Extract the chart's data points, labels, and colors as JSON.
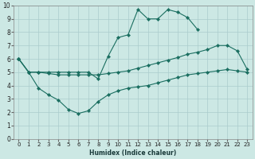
{
  "xlabel": "Humidex (Indice chaleur)",
  "bg_color": "#cce8e4",
  "grid_color": "#aacccc",
  "line_color": "#1a6e60",
  "line1_x": [
    0,
    1,
    2,
    3,
    4,
    5,
    6,
    7,
    8,
    9,
    10,
    11,
    12,
    13,
    14,
    15,
    16,
    17,
    18,
    19,
    20,
    21,
    22,
    23
  ],
  "line1_y": [
    6.0,
    5.0,
    5.0,
    4.9,
    4.8,
    4.8,
    4.8,
    4.8,
    4.8,
    4.9,
    5.0,
    5.1,
    5.3,
    5.5,
    5.7,
    5.9,
    6.1,
    6.35,
    6.5,
    6.7,
    7.0,
    7.0,
    6.6,
    5.2
  ],
  "line2_x": [
    0,
    1,
    2,
    3,
    4,
    5,
    6,
    7,
    8,
    9,
    10,
    11,
    12,
    13,
    14,
    15,
    16,
    17,
    18
  ],
  "line2_y": [
    6.0,
    5.0,
    5.0,
    5.0,
    5.0,
    5.0,
    5.0,
    5.0,
    4.5,
    6.2,
    7.6,
    7.8,
    9.7,
    9.0,
    9.0,
    9.7,
    9.5,
    9.1,
    8.2
  ],
  "line3_x": [
    0,
    1,
    2,
    3,
    4,
    5,
    6,
    7,
    8,
    9,
    10,
    11,
    12,
    13,
    14,
    15,
    16,
    17,
    18,
    19,
    20,
    21,
    22,
    23
  ],
  "line3_y": [
    6.0,
    5.0,
    3.8,
    3.3,
    2.9,
    2.2,
    1.9,
    2.1,
    2.8,
    3.3,
    3.6,
    3.8,
    3.9,
    4.0,
    4.2,
    4.4,
    4.6,
    4.8,
    4.9,
    5.0,
    5.1,
    5.2,
    5.1,
    5.0
  ],
  "ylim": [
    0,
    10
  ],
  "xlim": [
    -0.5,
    23.5
  ],
  "yticks": [
    0,
    1,
    2,
    3,
    4,
    5,
    6,
    7,
    8,
    9,
    10
  ],
  "xticks": [
    0,
    1,
    2,
    3,
    4,
    5,
    6,
    7,
    8,
    9,
    10,
    11,
    12,
    13,
    14,
    15,
    16,
    17,
    18,
    19,
    20,
    21,
    22,
    23
  ]
}
